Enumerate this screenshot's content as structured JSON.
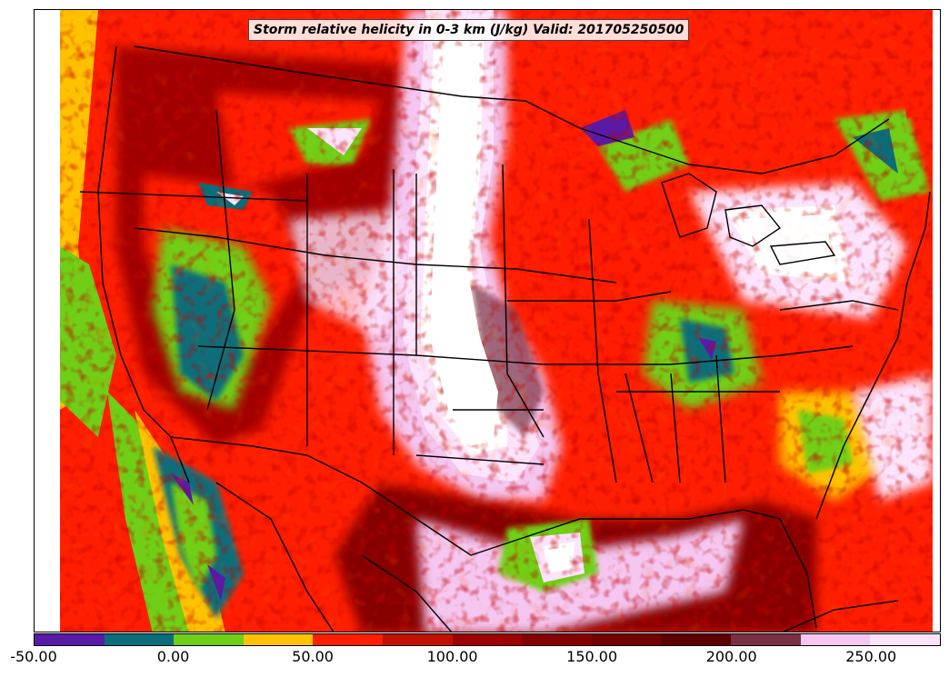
{
  "title": "Storm relative helicity in 0-3 km (J/kg) Valid: 201705250500",
  "colorbar": {
    "min": -50,
    "max": 275,
    "interval": 25,
    "colors": [
      "#5a1aa8",
      "#0a6e7a",
      "#6fcf16",
      "#ffc200",
      "#ff1f00",
      "#c41000",
      "#a00000",
      "#860000",
      "#740000",
      "#5e0000",
      "#7a3042",
      "#f4c6f0",
      "#fce4fc"
    ],
    "ticks": [
      "-50.00",
      "0.00",
      "50.00",
      "100.00",
      "150.00",
      "200.00",
      "250.00"
    ],
    "tick_values": [
      -50,
      0,
      50,
      100,
      150,
      200,
      250
    ]
  },
  "chart_data": {
    "type": "heatmap",
    "title": "Storm relative helicity in 0-3 km (J/kg) Valid: 201705250500",
    "variable": "Storm relative helicity 0-3 km",
    "units": "J/kg",
    "valid_time": "201705250500",
    "colorbar_range": [
      -50,
      275
    ],
    "colorbar_interval": 25,
    "tick_labels": [
      "-50.00",
      "0.00",
      "50.00",
      "100.00",
      "150.00",
      "200.00",
      "250.00"
    ]
  }
}
